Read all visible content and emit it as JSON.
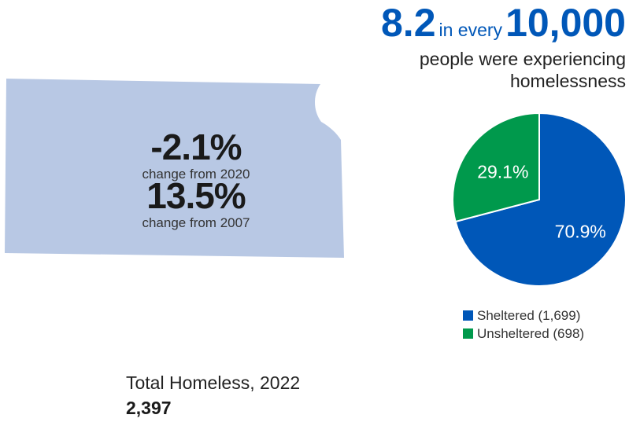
{
  "colors": {
    "map_fill": "#b8c8e4",
    "sheltered": "#0057b8",
    "unsheltered": "#00994c",
    "accent": "#0057b8"
  },
  "stats": {
    "change_2020_value": "-2.1%",
    "change_2020_label": "change from 2020",
    "change_2007_value": "13.5%",
    "change_2007_label": "change from 2007"
  },
  "rate": {
    "value": "8.2",
    "connector": "in every",
    "base": "10,000",
    "caption_line1": "people were experiencing",
    "caption_line2": "homelessness"
  },
  "total": {
    "label": "Total Homeless, 2022",
    "value": "2,397"
  },
  "chart_data": {
    "type": "pie",
    "slices": [
      {
        "name": "Sheltered (1,699)",
        "value": 70.9,
        "count": 1699,
        "label": "70.9%",
        "color": "#0057b8"
      },
      {
        "name": "Unsheltered (698)",
        "value": 29.1,
        "count": 698,
        "label": "29.1%",
        "color": "#00994c"
      }
    ],
    "legend_position": "bottom"
  }
}
